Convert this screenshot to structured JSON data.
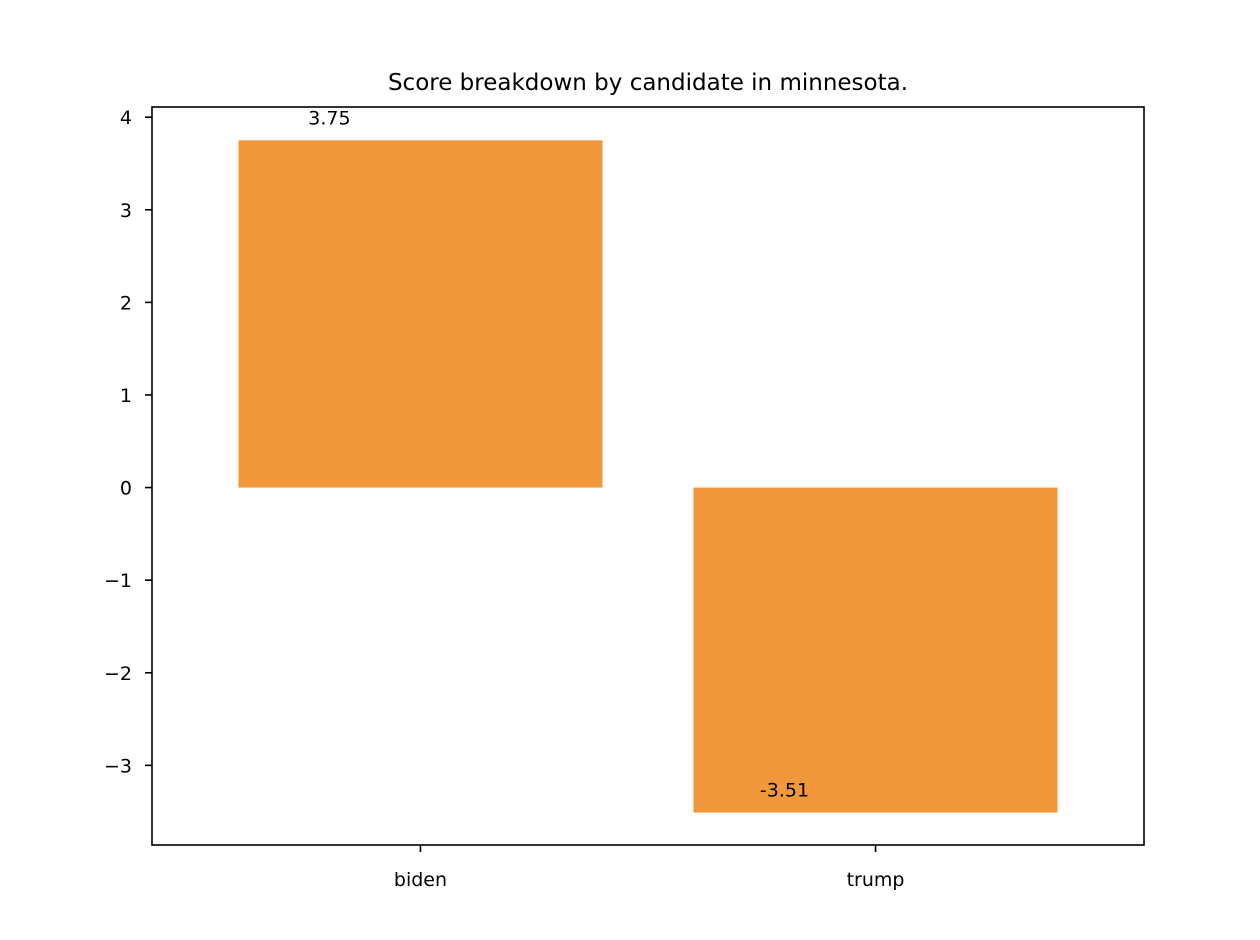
{
  "chart_data": {
    "type": "bar",
    "title": "Score breakdown by candidate in minnesota.",
    "xlabel": "",
    "ylabel": "",
    "categories": [
      "biden",
      "trump"
    ],
    "values": [
      3.75,
      -3.51
    ],
    "data_labels": [
      "3.75",
      "-3.51"
    ],
    "ylim": [
      -3.86,
      4.11
    ],
    "yticks": [
      4,
      3,
      2,
      1,
      0,
      -1,
      -2,
      -3
    ],
    "ytick_labels": [
      "4",
      "3",
      "2",
      "1",
      "0",
      "−1",
      "−2",
      "−3"
    ],
    "grid": false,
    "legend": "none",
    "bar_color": "#f0983a"
  }
}
